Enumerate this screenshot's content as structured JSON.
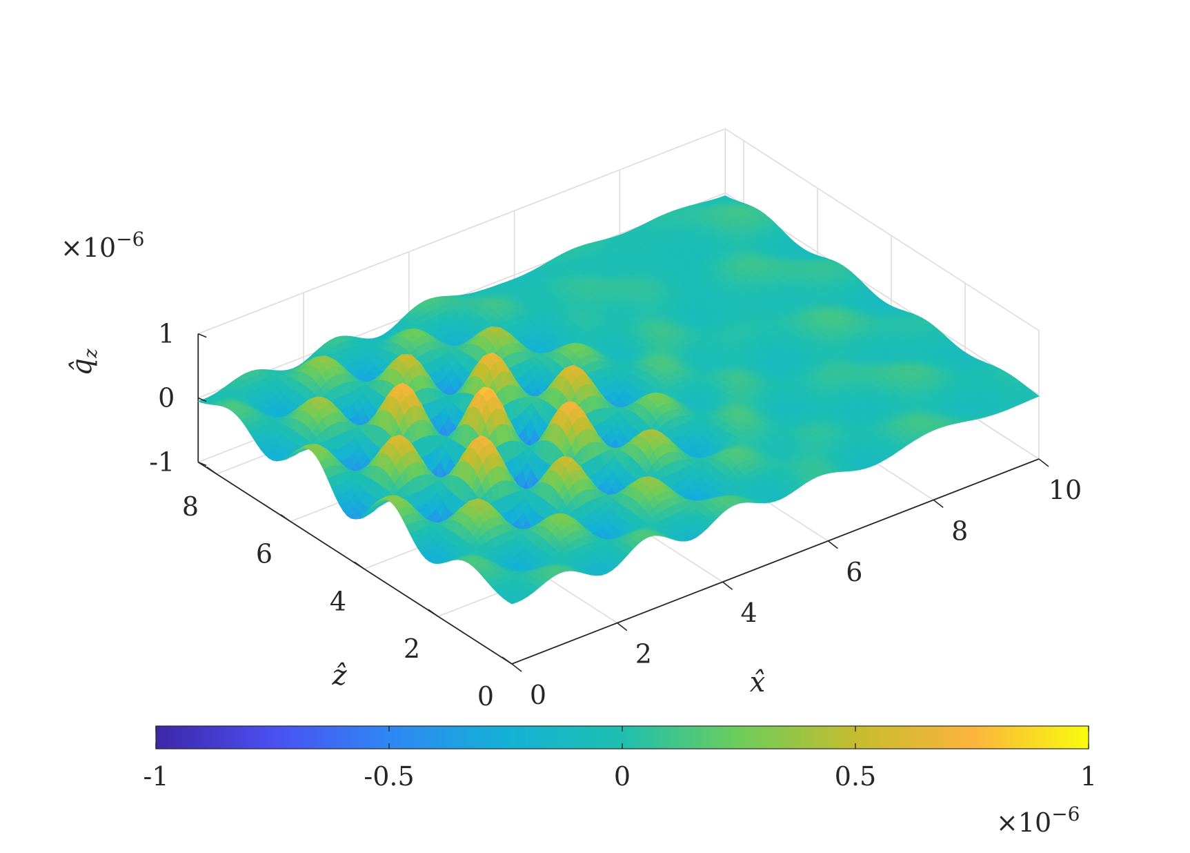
{
  "chart_data": {
    "type": "surface",
    "title": "",
    "xlabel": "x̂",
    "ylabel": "ẑ",
    "zlabel": "q̂",
    "zlabel_subscript": "z",
    "xlim": [
      0,
      10
    ],
    "ylim": [
      0,
      8.5
    ],
    "zlim": [
      -1e-06,
      1e-06
    ],
    "x_ticks": [
      0,
      2,
      4,
      6,
      8,
      10
    ],
    "y_ticks": [
      0,
      2,
      4,
      6,
      8
    ],
    "z_ticks": [
      -1,
      0,
      1
    ],
    "x_tick_labels": [
      "0",
      "2",
      "4",
      "6",
      "8",
      "10"
    ],
    "y_tick_labels": [
      "0",
      "2",
      "4",
      "6",
      "8"
    ],
    "z_tick_labels": [
      "-1",
      "0",
      "1"
    ],
    "z_exponent": {
      "base": "×10",
      "power": "−6"
    },
    "grid": true,
    "colormap": "parula",
    "colormap_stops": [
      "#3e26a8",
      "#4a4ff1",
      "#2f87f5",
      "#13b1d6",
      "#1fbfb0",
      "#6ccd5a",
      "#c6bc2e",
      "#fbb43c",
      "#f9fb0e"
    ],
    "colorbar": {
      "location": "south",
      "range": [
        -1,
        1
      ],
      "ticks": [
        -1,
        -0.5,
        0,
        0.5,
        1
      ],
      "tick_labels": [
        "-1",
        "-0.5",
        "0",
        "0.5",
        "1"
      ],
      "exponent": {
        "base": "×10",
        "power": "−6"
      }
    },
    "surface_description": {
      "wave_packet_center_x": 2.6,
      "wave_packet_center_z": 4.4,
      "peak_amplitude": 9e-07,
      "wavelength_x": 1.7,
      "wavelength_z": 2.2,
      "background_noise_amplitude": 1.2e-07
    }
  }
}
